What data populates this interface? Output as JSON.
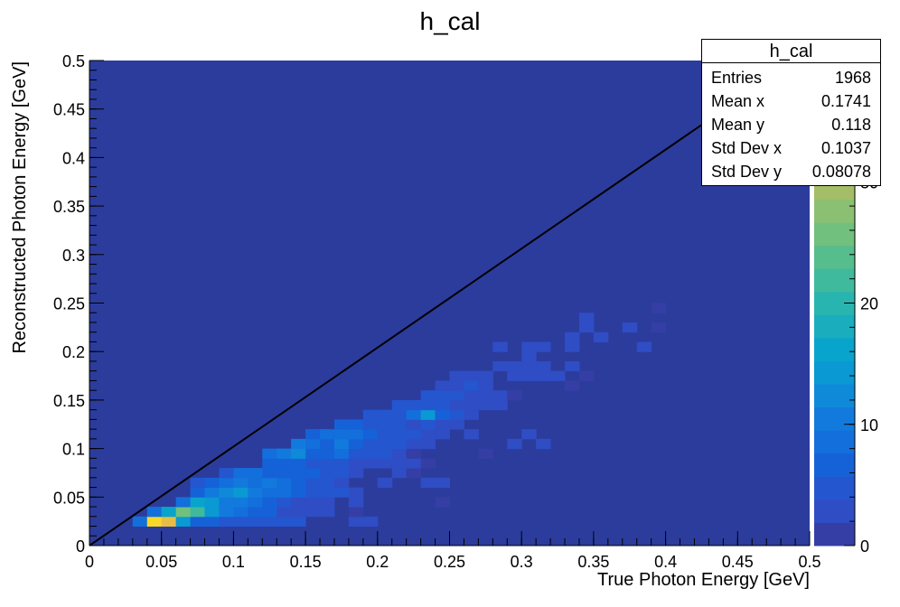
{
  "chart_data": {
    "type": "heatmap",
    "title": "h_cal",
    "xlabel": "True Photon Energy [GeV]",
    "ylabel": "Reconstructed Photon Energy [GeV]",
    "xlim": [
      0,
      0.5
    ],
    "ylim": [
      0,
      0.5
    ],
    "x_ticks": [
      "0",
      "0.05",
      "0.1",
      "0.15",
      "0.2",
      "0.25",
      "0.3",
      "0.35",
      "0.4",
      "0.45",
      "0.5"
    ],
    "y_ticks": [
      "0",
      "0.05",
      "0.1",
      "0.15",
      "0.2",
      "0.25",
      "0.3",
      "0.35",
      "0.4",
      "0.45",
      "0.5"
    ],
    "bins": {
      "nx": 50,
      "ny": 50,
      "width": 0.01
    },
    "zlim": [
      0,
      40
    ],
    "colorbar_ticks": [
      "0",
      "10",
      "20",
      "30"
    ],
    "colorbar_palette": [
      "#353EA4",
      "#2F4DC4",
      "#2456D0",
      "#1562D8",
      "#136FDB",
      "#137ADD",
      "#0F8AD9",
      "#0A99D2",
      "#08A4CB",
      "#19ADBD",
      "#29B5AF",
      "#3FBA9D",
      "#56BE8D",
      "#71C07D",
      "#8BC072",
      "#A3BE67",
      "#BCBA5F",
      "#D2B85A",
      "#E8BD46",
      "#F7D829",
      "#FFF71A"
    ],
    "background_color": "#2C3C9C",
    "diagonal_line": {
      "from": [
        0,
        0
      ],
      "to": [
        0.49,
        0.5
      ],
      "color": "#000000"
    },
    "cells": [
      [
        3,
        2,
        8
      ],
      [
        4,
        2,
        38
      ],
      [
        5,
        2,
        36
      ],
      [
        6,
        2,
        14
      ],
      [
        7,
        2,
        7
      ],
      [
        8,
        2,
        7
      ],
      [
        9,
        2,
        4
      ],
      [
        10,
        2,
        4
      ],
      [
        11,
        2,
        4
      ],
      [
        12,
        2,
        4
      ],
      [
        13,
        2,
        4
      ],
      [
        14,
        2,
        4
      ],
      [
        18,
        2,
        2
      ],
      [
        19,
        2,
        2
      ],
      [
        4,
        3,
        8
      ],
      [
        5,
        3,
        16
      ],
      [
        6,
        3,
        25
      ],
      [
        7,
        3,
        22
      ],
      [
        8,
        3,
        14
      ],
      [
        9,
        3,
        10
      ],
      [
        10,
        3,
        9
      ],
      [
        11,
        3,
        7
      ],
      [
        12,
        3,
        6
      ],
      [
        13,
        3,
        3
      ],
      [
        14,
        3,
        3
      ],
      [
        15,
        3,
        2
      ],
      [
        16,
        3,
        2
      ],
      [
        18,
        3,
        1
      ],
      [
        6,
        4,
        8
      ],
      [
        7,
        4,
        16
      ],
      [
        8,
        4,
        14
      ],
      [
        9,
        4,
        10
      ],
      [
        10,
        4,
        10
      ],
      [
        11,
        4,
        8
      ],
      [
        12,
        4,
        6
      ],
      [
        13,
        4,
        4
      ],
      [
        14,
        4,
        3
      ],
      [
        15,
        4,
        3
      ],
      [
        16,
        4,
        2
      ],
      [
        18,
        4,
        2
      ],
      [
        24,
        4,
        1
      ],
      [
        7,
        5,
        7
      ],
      [
        8,
        5,
        10
      ],
      [
        9,
        5,
        12
      ],
      [
        10,
        5,
        14
      ],
      [
        11,
        5,
        10
      ],
      [
        12,
        5,
        9
      ],
      [
        13,
        5,
        9
      ],
      [
        14,
        5,
        7
      ],
      [
        15,
        5,
        5
      ],
      [
        16,
        5,
        5
      ],
      [
        17,
        5,
        4
      ],
      [
        18,
        5,
        2
      ],
      [
        7,
        6,
        4
      ],
      [
        8,
        6,
        6
      ],
      [
        9,
        6,
        8
      ],
      [
        10,
        6,
        10
      ],
      [
        11,
        6,
        9
      ],
      [
        12,
        6,
        10
      ],
      [
        13,
        6,
        8
      ],
      [
        14,
        6,
        6
      ],
      [
        15,
        6,
        5
      ],
      [
        16,
        6,
        4
      ],
      [
        17,
        6,
        3
      ],
      [
        20,
        6,
        2
      ],
      [
        23,
        6,
        2
      ],
      [
        24,
        6,
        2
      ],
      [
        9,
        7,
        5
      ],
      [
        10,
        7,
        8
      ],
      [
        11,
        7,
        8
      ],
      [
        12,
        7,
        6
      ],
      [
        13,
        7,
        6
      ],
      [
        14,
        7,
        7
      ],
      [
        15,
        7,
        7
      ],
      [
        16,
        7,
        4
      ],
      [
        17,
        7,
        4
      ],
      [
        18,
        7,
        3
      ],
      [
        21,
        7,
        2
      ],
      [
        22,
        7,
        1
      ],
      [
        12,
        8,
        6
      ],
      [
        13,
        8,
        7
      ],
      [
        14,
        8,
        6
      ],
      [
        15,
        8,
        5
      ],
      [
        16,
        8,
        5
      ],
      [
        17,
        8,
        4
      ],
      [
        18,
        8,
        3
      ],
      [
        19,
        8,
        3
      ],
      [
        20,
        8,
        2
      ],
      [
        21,
        8,
        2
      ],
      [
        22,
        8,
        2
      ],
      [
        23,
        8,
        1
      ],
      [
        12,
        9,
        8
      ],
      [
        13,
        9,
        11
      ],
      [
        14,
        9,
        12
      ],
      [
        15,
        9,
        6
      ],
      [
        16,
        9,
        7
      ],
      [
        17,
        9,
        8
      ],
      [
        18,
        9,
        5
      ],
      [
        19,
        9,
        4
      ],
      [
        20,
        9,
        4
      ],
      [
        21,
        9,
        2
      ],
      [
        22,
        9,
        1
      ],
      [
        27,
        9,
        1
      ],
      [
        14,
        10,
        10
      ],
      [
        15,
        10,
        8
      ],
      [
        16,
        10,
        7
      ],
      [
        17,
        10,
        10
      ],
      [
        18,
        10,
        7
      ],
      [
        19,
        10,
        5
      ],
      [
        20,
        10,
        4
      ],
      [
        21,
        10,
        4
      ],
      [
        22,
        10,
        3
      ],
      [
        23,
        10,
        2
      ],
      [
        29,
        10,
        2
      ],
      [
        31,
        10,
        2
      ],
      [
        15,
        11,
        7
      ],
      [
        16,
        11,
        8
      ],
      [
        17,
        11,
        9
      ],
      [
        18,
        11,
        8
      ],
      [
        19,
        11,
        6
      ],
      [
        20,
        11,
        5
      ],
      [
        21,
        11,
        5
      ],
      [
        22,
        11,
        4
      ],
      [
        23,
        11,
        3
      ],
      [
        24,
        11,
        2
      ],
      [
        26,
        11,
        2
      ],
      [
        30,
        11,
        2
      ],
      [
        17,
        12,
        6
      ],
      [
        18,
        12,
        6
      ],
      [
        19,
        12,
        5
      ],
      [
        20,
        12,
        5
      ],
      [
        21,
        12,
        4
      ],
      [
        22,
        12,
        3
      ],
      [
        23,
        12,
        4
      ],
      [
        24,
        12,
        3
      ],
      [
        25,
        12,
        2
      ],
      [
        19,
        13,
        4
      ],
      [
        20,
        13,
        4
      ],
      [
        21,
        13,
        5
      ],
      [
        22,
        13,
        8
      ],
      [
        23,
        13,
        14
      ],
      [
        24,
        13,
        7
      ],
      [
        25,
        13,
        4
      ],
      [
        26,
        13,
        3
      ],
      [
        21,
        14,
        4
      ],
      [
        22,
        14,
        4
      ],
      [
        23,
        14,
        5
      ],
      [
        24,
        14,
        4
      ],
      [
        25,
        14,
        3
      ],
      [
        26,
        14,
        3
      ],
      [
        27,
        14,
        2
      ],
      [
        28,
        14,
        3
      ],
      [
        23,
        15,
        4
      ],
      [
        24,
        15,
        5
      ],
      [
        25,
        15,
        4
      ],
      [
        26,
        15,
        3
      ],
      [
        27,
        15,
        2
      ],
      [
        28,
        15,
        2
      ],
      [
        29,
        15,
        1
      ],
      [
        24,
        16,
        3
      ],
      [
        25,
        16,
        3
      ],
      [
        26,
        16,
        4
      ],
      [
        27,
        16,
        3
      ],
      [
        33,
        16,
        1
      ],
      [
        25,
        17,
        3
      ],
      [
        26,
        17,
        3
      ],
      [
        27,
        17,
        2
      ],
      [
        29,
        17,
        2
      ],
      [
        30,
        17,
        2
      ],
      [
        31,
        17,
        2
      ],
      [
        32,
        17,
        2
      ],
      [
        34,
        17,
        1
      ],
      [
        28,
        18,
        2
      ],
      [
        29,
        18,
        2
      ],
      [
        30,
        18,
        2
      ],
      [
        31,
        18,
        2
      ],
      [
        33,
        18,
        2
      ],
      [
        30,
        19,
        2
      ],
      [
        28,
        20,
        2
      ],
      [
        30,
        20,
        2
      ],
      [
        31,
        20,
        2
      ],
      [
        33,
        20,
        2
      ],
      [
        38,
        20,
        2
      ],
      [
        33,
        21,
        2
      ],
      [
        35,
        21,
        2
      ],
      [
        34,
        22,
        2
      ],
      [
        37,
        22,
        2
      ],
      [
        39,
        22,
        1
      ],
      [
        34,
        23,
        2
      ],
      [
        39,
        24,
        1
      ]
    ]
  },
  "stats": {
    "title": "h_cal",
    "rows": [
      {
        "label": "Entries",
        "value": "1968"
      },
      {
        "label": "Mean x",
        "value": "0.1741"
      },
      {
        "label": "Mean y",
        "value": "0.118"
      },
      {
        "label": "Std Dev x",
        "value": "0.1037"
      },
      {
        "label": "Std Dev y",
        "value": "0.08078"
      }
    ]
  }
}
